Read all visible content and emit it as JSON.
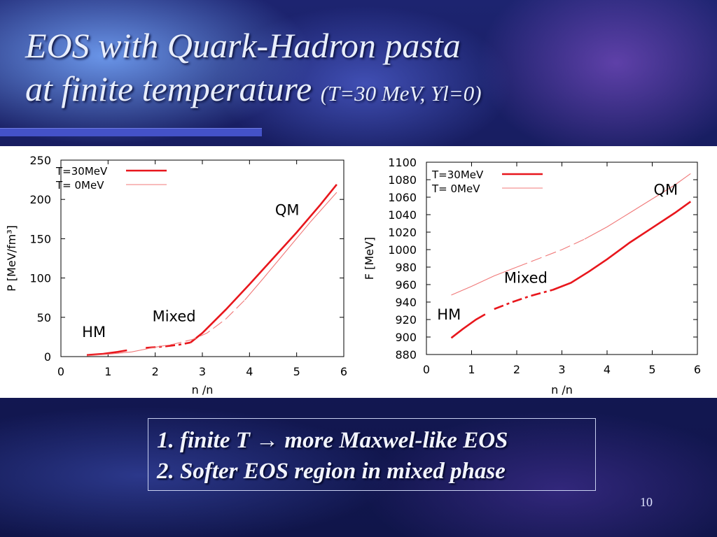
{
  "slide": {
    "title_line1": "EOS with Quark-Hadron pasta",
    "title_line2": "at finite temperature",
    "title_params": "(T=30 MeV, Yl=0)",
    "bullets": [
      "1.  finite T → more Maxwel-like EOS",
      "2.  Softer EOS region in mixed phase"
    ],
    "page_number": "10"
  },
  "colors": {
    "curve": "#e8161c",
    "curve_light": "#f07878",
    "accent_bar": "#4452c8"
  },
  "chart_data": [
    {
      "type": "line",
      "xlabel": "n  /n",
      "ylabel": "P [MeV/fm³]",
      "xlim": [
        0,
        6
      ],
      "ylim": [
        0,
        250
      ],
      "xticks": [
        "0",
        "1",
        "2",
        "3",
        "4",
        "5",
        "6"
      ],
      "yticks": [
        "0",
        "50",
        "100",
        "150",
        "200",
        "250"
      ],
      "grid": false,
      "legend_position": "top-left",
      "annotations": [
        {
          "text": "QM",
          "x": 4.8,
          "y": 180
        },
        {
          "text": "Mixed",
          "x": 2.4,
          "y": 45
        },
        {
          "text": "HM",
          "x": 0.7,
          "y": 25
        }
      ],
      "series": [
        {
          "name": "T=30MeV",
          "style": "thick",
          "segments": [
            {
              "phase": "HM",
              "points": [
                [
                  0.55,
                  2
                ],
                [
                  0.9,
                  3.5
                ],
                [
                  1.2,
                  6
                ],
                [
                  1.4,
                  8
                ]
              ]
            },
            {
              "phase": "Mixed",
              "points": [
                [
                  1.8,
                  11
                ],
                [
                  2.2,
                  13
                ],
                [
                  2.5,
                  15
                ],
                [
                  2.75,
                  18
                ]
              ]
            },
            {
              "phase": "QM",
              "points": [
                [
                  2.75,
                  18
                ],
                [
                  3.0,
                  30
                ],
                [
                  3.5,
                  60
                ],
                [
                  4.0,
                  92
                ],
                [
                  4.5,
                  125
                ],
                [
                  5.0,
                  158
                ],
                [
                  5.5,
                  193
                ],
                [
                  5.85,
                  219
                ]
              ]
            }
          ]
        },
        {
          "name": "T= 0MeV",
          "style": "thin",
          "segments": [
            {
              "phase": "HM",
              "points": [
                [
                  0.55,
                  1
                ],
                [
                  1.0,
                  3
                ],
                [
                  1.5,
                  6
                ],
                [
                  2.0,
                  12
                ]
              ]
            },
            {
              "phase": "Mixed",
              "points": [
                [
                  2.0,
                  12
                ],
                [
                  2.4,
                  16
                ],
                [
                  2.8,
                  22
                ],
                [
                  3.1,
                  30
                ],
                [
                  3.5,
                  48
                ],
                [
                  3.9,
                  72
                ]
              ]
            },
            {
              "phase": "QM",
              "points": [
                [
                  3.9,
                  72
                ],
                [
                  4.3,
                  100
                ],
                [
                  4.8,
                  136
                ],
                [
                  5.3,
                  172
                ],
                [
                  5.85,
                  209
                ]
              ]
            }
          ]
        }
      ]
    },
    {
      "type": "line",
      "xlabel": "n  /n",
      "ylabel": "F [MeV]",
      "xlim": [
        0,
        6
      ],
      "ylim": [
        880,
        1100
      ],
      "xticks": [
        "0",
        "1",
        "2",
        "3",
        "4",
        "5",
        "6"
      ],
      "yticks": [
        "880",
        "900",
        "920",
        "940",
        "960",
        "980",
        "1000",
        "1020",
        "1040",
        "1060",
        "1080",
        "1100"
      ],
      "grid": false,
      "legend_position": "top-left",
      "annotations": [
        {
          "text": "QM",
          "x": 5.3,
          "y": 1063
        },
        {
          "text": "Mixed",
          "x": 2.2,
          "y": 962
        },
        {
          "text": "HM",
          "x": 0.5,
          "y": 920
        }
      ],
      "series": [
        {
          "name": "T=30MeV",
          "style": "thick",
          "segments": [
            {
              "phase": "HM",
              "points": [
                [
                  0.55,
                  899
                ],
                [
                  0.8,
                  909
                ],
                [
                  1.1,
                  920
                ],
                [
                  1.3,
                  926
                ]
              ]
            },
            {
              "phase": "Mixed",
              "points": [
                [
                  1.5,
                  932
                ],
                [
                  1.9,
                  940
                ],
                [
                  2.3,
                  947
                ],
                [
                  2.8,
                  954
                ]
              ]
            },
            {
              "phase": "QM",
              "points": [
                [
                  2.8,
                  954
                ],
                [
                  3.2,
                  962
                ],
                [
                  3.6,
                  975
                ],
                [
                  4.0,
                  989
                ],
                [
                  4.5,
                  1008
                ],
                [
                  5.0,
                  1025
                ],
                [
                  5.5,
                  1042
                ],
                [
                  5.85,
                  1055
                ]
              ]
            }
          ]
        },
        {
          "name": "T= 0MeV",
          "style": "thin",
          "segments": [
            {
              "phase": "HM",
              "points": [
                [
                  0.55,
                  948
                ],
                [
                  1.0,
                  958
                ],
                [
                  1.5,
                  970
                ],
                [
                  2.0,
                  980
                ]
              ]
            },
            {
              "phase": "Mixed",
              "points": [
                [
                  2.0,
                  980
                ],
                [
                  2.5,
                  990
                ],
                [
                  3.0,
                  1000
                ],
                [
                  3.5,
                  1012
                ]
              ]
            },
            {
              "phase": "QM",
              "points": [
                [
                  3.5,
                  1012
                ],
                [
                  4.0,
                  1026
                ],
                [
                  4.5,
                  1042
                ],
                [
                  5.0,
                  1058
                ],
                [
                  5.5,
                  1074
                ],
                [
                  5.85,
                  1087
                ]
              ]
            }
          ]
        }
      ]
    }
  ]
}
